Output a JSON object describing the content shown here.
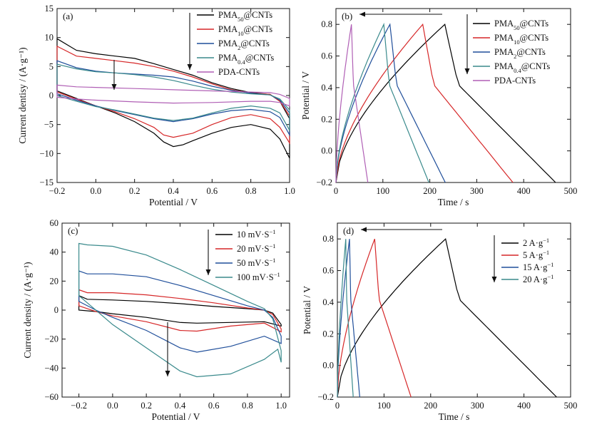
{
  "chart_data": [
    {
      "panel_label": "(a)",
      "type": "line",
      "xlabel": "Potential / V",
      "ylabel": "Current dentisy / (A·g⁻¹)",
      "xlim": [
        -0.2,
        1.0
      ],
      "ylim": [
        -15,
        15
      ],
      "xticks": [
        "−0.2",
        "0.0",
        "0.2",
        "0.4",
        "0.6",
        "0.8",
        "1.0"
      ],
      "yticks": [
        "−15",
        "−10",
        "−5",
        "0",
        "5",
        "10",
        "15"
      ],
      "legend_position": "top-right",
      "series": [
        {
          "name": "PMA",
          "sub": "50",
          "suffix": "@CNTs",
          "color": "#000000",
          "upper": [
            [
              -0.2,
              9.8
            ],
            [
              -0.1,
              7.8
            ],
            [
              0.0,
              7.2
            ],
            [
              0.1,
              6.8
            ],
            [
              0.2,
              6.4
            ],
            [
              0.3,
              5.5
            ],
            [
              0.4,
              4.5
            ],
            [
              0.5,
              3.5
            ],
            [
              0.6,
              2.2
            ],
            [
              0.7,
              1.2
            ],
            [
              0.8,
              0.5
            ],
            [
              0.9,
              0.2
            ],
            [
              0.95,
              -1.0
            ],
            [
              1.0,
              -4.0
            ]
          ],
          "lower": [
            [
              -0.2,
              0.8
            ],
            [
              -0.1,
              -0.5
            ],
            [
              0.0,
              -1.8
            ],
            [
              0.1,
              -3.0
            ],
            [
              0.2,
              -4.5
            ],
            [
              0.3,
              -6.5
            ],
            [
              0.35,
              -8.0
            ],
            [
              0.4,
              -8.8
            ],
            [
              0.45,
              -8.5
            ],
            [
              0.5,
              -7.8
            ],
            [
              0.6,
              -6.5
            ],
            [
              0.7,
              -5.5
            ],
            [
              0.8,
              -5.0
            ],
            [
              0.9,
              -5.8
            ],
            [
              0.95,
              -7.5
            ],
            [
              1.0,
              -10.8
            ]
          ]
        },
        {
          "name": "PMA",
          "sub": "10",
          "suffix": "@CNTs",
          "color": "#d62728",
          "upper": [
            [
              -0.2,
              8.5
            ],
            [
              -0.1,
              6.8
            ],
            [
              0.0,
              6.4
            ],
            [
              0.1,
              6.0
            ],
            [
              0.2,
              5.6
            ],
            [
              0.3,
              5.0
            ],
            [
              0.4,
              4.2
            ],
            [
              0.5,
              3.2
            ],
            [
              0.6,
              2.0
            ],
            [
              0.7,
              1.0
            ],
            [
              0.8,
              0.4
            ],
            [
              0.9,
              0.2
            ],
            [
              0.95,
              -1.0
            ],
            [
              1.0,
              -3.5
            ]
          ],
          "lower": [
            [
              -0.2,
              0.6
            ],
            [
              -0.1,
              -0.6
            ],
            [
              0.0,
              -1.8
            ],
            [
              0.1,
              -2.8
            ],
            [
              0.2,
              -4.0
            ],
            [
              0.3,
              -5.5
            ],
            [
              0.35,
              -6.8
            ],
            [
              0.4,
              -7.2
            ],
            [
              0.5,
              -6.5
            ],
            [
              0.6,
              -5.0
            ],
            [
              0.7,
              -3.8
            ],
            [
              0.8,
              -3.3
            ],
            [
              0.9,
              -4.0
            ],
            [
              0.95,
              -5.5
            ],
            [
              1.0,
              -8.2
            ]
          ]
        },
        {
          "name": "PMA",
          "sub": "2",
          "suffix": "@CNTs",
          "color": "#1f4e9a",
          "upper": [
            [
              -0.2,
              6.0
            ],
            [
              -0.1,
              4.8
            ],
            [
              0.0,
              4.2
            ],
            [
              0.1,
              3.9
            ],
            [
              0.2,
              3.7
            ],
            [
              0.3,
              3.5
            ],
            [
              0.4,
              3.2
            ],
            [
              0.5,
              2.5
            ],
            [
              0.6,
              1.6
            ],
            [
              0.7,
              0.9
            ],
            [
              0.8,
              0.4
            ],
            [
              0.9,
              0.1
            ],
            [
              0.95,
              -0.8
            ],
            [
              1.0,
              -3.0
            ]
          ],
          "lower": [
            [
              -0.2,
              0.3
            ],
            [
              -0.1,
              -0.8
            ],
            [
              0.0,
              -1.8
            ],
            [
              0.1,
              -2.6
            ],
            [
              0.2,
              -3.3
            ],
            [
              0.3,
              -4.0
            ],
            [
              0.4,
              -4.5
            ],
            [
              0.5,
              -4.0
            ],
            [
              0.6,
              -3.2
            ],
            [
              0.7,
              -2.6
            ],
            [
              0.8,
              -2.4
            ],
            [
              0.9,
              -2.8
            ],
            [
              0.95,
              -3.8
            ],
            [
              1.0,
              -6.8
            ]
          ]
        },
        {
          "name": "PMA",
          "sub": "0.4",
          "suffix": "@CNTs",
          "color": "#3a8a8c",
          "upper": [
            [
              -0.2,
              5.4
            ],
            [
              -0.1,
              4.6
            ],
            [
              0.0,
              4.1
            ],
            [
              0.1,
              3.9
            ],
            [
              0.2,
              3.6
            ],
            [
              0.3,
              3.2
            ],
            [
              0.4,
              2.6
            ],
            [
              0.5,
              1.8
            ],
            [
              0.6,
              1.1
            ],
            [
              0.7,
              0.6
            ],
            [
              0.8,
              0.3
            ],
            [
              0.9,
              0.1
            ],
            [
              0.95,
              -0.6
            ],
            [
              1.0,
              -2.5
            ]
          ],
          "lower": [
            [
              -0.2,
              0.0
            ],
            [
              -0.1,
              -1.0
            ],
            [
              0.0,
              -1.9
            ],
            [
              0.1,
              -2.5
            ],
            [
              0.2,
              -3.2
            ],
            [
              0.3,
              -3.9
            ],
            [
              0.4,
              -4.3
            ],
            [
              0.5,
              -3.9
            ],
            [
              0.6,
              -3.0
            ],
            [
              0.7,
              -2.2
            ],
            [
              0.8,
              -1.8
            ],
            [
              0.9,
              -2.2
            ],
            [
              0.95,
              -3.0
            ],
            [
              1.0,
              -6.0
            ]
          ]
        },
        {
          "name": "PDA-CNTs",
          "sub": "",
          "suffix": "",
          "color": "#b05fb5",
          "upper": [
            [
              -0.2,
              1.8
            ],
            [
              -0.1,
              1.5
            ],
            [
              0.0,
              1.4
            ],
            [
              0.2,
              1.2
            ],
            [
              0.4,
              1.0
            ],
            [
              0.6,
              0.8
            ],
            [
              0.8,
              0.6
            ],
            [
              0.9,
              0.5
            ],
            [
              0.95,
              0.2
            ],
            [
              1.0,
              -0.5
            ]
          ],
          "lower": [
            [
              -0.2,
              -0.3
            ],
            [
              -0.1,
              -0.6
            ],
            [
              0.0,
              -0.8
            ],
            [
              0.2,
              -1.1
            ],
            [
              0.4,
              -1.3
            ],
            [
              0.6,
              -1.2
            ],
            [
              0.8,
              -1.0
            ],
            [
              0.9,
              -1.0
            ],
            [
              0.95,
              -1.2
            ],
            [
              1.0,
              -1.8
            ]
          ]
        }
      ]
    },
    {
      "panel_label": "(b)",
      "type": "line",
      "xlabel": "Time / s",
      "ylabel": "Potential / V",
      "xlim": [
        0,
        500
      ],
      "ylim": [
        -0.2,
        0.9
      ],
      "xticks": [
        "0",
        "100",
        "200",
        "300",
        "400",
        "500"
      ],
      "yticks": [
        "−0.2",
        "0.0",
        "0.2",
        "0.4",
        "0.6",
        "0.8"
      ],
      "legend_position": "top-right",
      "series": [
        {
          "name": "PMA",
          "sub": "50",
          "suffix": "@CNTs",
          "color": "#000000",
          "peak_time": 232,
          "end_time": 468
        },
        {
          "name": "PMA",
          "sub": "10",
          "suffix": "@CNTs",
          "color": "#d62728",
          "peak_time": 185,
          "end_time": 377
        },
        {
          "name": "PMA",
          "sub": "2",
          "suffix": "@CNTs",
          "color": "#1f4e9a",
          "peak_time": 115,
          "end_time": 233
        },
        {
          "name": "PMA",
          "sub": "0.4",
          "suffix": "@CNTs",
          "color": "#3a8a8c",
          "peak_time": 102,
          "end_time": 198
        },
        {
          "name": "PDA-CNTs",
          "sub": "",
          "suffix": "",
          "color": "#b05fb5",
          "peak_time": 33,
          "end_time": 68
        }
      ]
    },
    {
      "panel_label": "(c)",
      "type": "line",
      "xlabel": "Potential / V",
      "ylabel": "Current density / (A·g⁻¹)",
      "xlim": [
        -0.3,
        1.05
      ],
      "ylim": [
        -60,
        60
      ],
      "xticks": [
        "−0.2",
        "0.0",
        "0.2",
        "0.4",
        "0.6",
        "0.8",
        "1.0"
      ],
      "xtick_values": [
        -0.2,
        0.0,
        0.2,
        0.4,
        0.6,
        0.8,
        1.0
      ],
      "yticks": [
        "−60",
        "−40",
        "−20",
        "0",
        "20",
        "40",
        "60"
      ],
      "legend_position": "top-right",
      "series": [
        {
          "name": "10 mV·S",
          "sup": "−1",
          "color": "#000000",
          "upper": [
            [
              -0.2,
              10
            ],
            [
              -0.15,
              7.5
            ],
            [
              0.0,
              7
            ],
            [
              0.2,
              6
            ],
            [
              0.4,
              4.5
            ],
            [
              0.6,
              2.5
            ],
            [
              0.8,
              1
            ],
            [
              0.9,
              0
            ],
            [
              0.95,
              -2
            ],
            [
              1.0,
              -10
            ]
          ],
          "lower": [
            [
              -0.2,
              0
            ],
            [
              -0.1,
              -1
            ],
            [
              0.0,
              -2.5
            ],
            [
              0.2,
              -5
            ],
            [
              0.4,
              -8.5
            ],
            [
              0.5,
              -9
            ],
            [
              0.7,
              -8.5
            ],
            [
              0.9,
              -8
            ],
            [
              1.0,
              -11
            ]
          ]
        },
        {
          "name": "20 mV·S",
          "sup": "−1",
          "color": "#d62728",
          "upper": [
            [
              -0.2,
              14
            ],
            [
              -0.15,
              12
            ],
            [
              0.0,
              12
            ],
            [
              0.2,
              10.5
            ],
            [
              0.4,
              8
            ],
            [
              0.6,
              5
            ],
            [
              0.8,
              1.5
            ],
            [
              0.9,
              0
            ],
            [
              0.95,
              -3
            ],
            [
              1.0,
              -13
            ]
          ],
          "lower": [
            [
              -0.2,
              3
            ],
            [
              -0.1,
              -1
            ],
            [
              0.0,
              -4
            ],
            [
              0.2,
              -8
            ],
            [
              0.4,
              -14
            ],
            [
              0.5,
              -14.5
            ],
            [
              0.7,
              -11
            ],
            [
              0.9,
              -9
            ],
            [
              1.0,
              -15
            ]
          ]
        },
        {
          "name": "50 mV·S",
          "sup": "−1",
          "color": "#1f4e9a",
          "upper": [
            [
              -0.2,
              27
            ],
            [
              -0.15,
              25
            ],
            [
              0.0,
              25
            ],
            [
              0.2,
              23
            ],
            [
              0.4,
              17
            ],
            [
              0.6,
              10
            ],
            [
              0.8,
              3
            ],
            [
              0.9,
              0
            ],
            [
              0.95,
              -5
            ],
            [
              1.0,
              -18
            ]
          ],
          "lower": [
            [
              -0.2,
              6
            ],
            [
              -0.1,
              0
            ],
            [
              0.0,
              -5
            ],
            [
              0.2,
              -14
            ],
            [
              0.4,
              -26
            ],
            [
              0.5,
              -29
            ],
            [
              0.7,
              -25
            ],
            [
              0.9,
              -18
            ],
            [
              1.0,
              -23
            ]
          ]
        },
        {
          "name": "100 mV·S",
          "sup": "−1",
          "color": "#3a8a8c",
          "upper": [
            [
              -0.2,
              46
            ],
            [
              -0.15,
              45
            ],
            [
              0.0,
              44
            ],
            [
              0.2,
              38
            ],
            [
              0.4,
              28
            ],
            [
              0.6,
              17
            ],
            [
              0.8,
              6
            ],
            [
              0.9,
              1
            ],
            [
              0.95,
              -6
            ],
            [
              1.0,
              -28
            ]
          ],
          "lower": [
            [
              -0.2,
              10
            ],
            [
              -0.1,
              0
            ],
            [
              0.0,
              -10
            ],
            [
              0.2,
              -26
            ],
            [
              0.4,
              -42
            ],
            [
              0.5,
              -46
            ],
            [
              0.7,
              -44
            ],
            [
              0.9,
              -34
            ],
            [
              0.98,
              -27
            ],
            [
              1.0,
              -36
            ]
          ]
        }
      ]
    },
    {
      "panel_label": "(d)",
      "type": "line",
      "xlabel": "Time / s",
      "ylabel": "Potential / V",
      "xlim": [
        0,
        500
      ],
      "ylim": [
        -0.2,
        0.9
      ],
      "xticks": [
        "0",
        "100",
        "200",
        "300",
        "400",
        "500"
      ],
      "yticks": [
        "−0.2",
        "0.0",
        "0.2",
        "0.4",
        "0.6",
        "0.8"
      ],
      "legend_position": "top-right",
      "series": [
        {
          "name": "2 A·g",
          "sup": "−1",
          "color": "#000000",
          "peak_time": 232,
          "end_time": 470
        },
        {
          "name": "5 A·g",
          "sup": "−1",
          "color": "#d62728",
          "peak_time": 80,
          "end_time": 158
        },
        {
          "name": "15 A·g",
          "sup": "−1",
          "color": "#1f4e9a",
          "peak_time": 26,
          "end_time": 48
        },
        {
          "name": "20 A·g",
          "sup": "−1",
          "color": "#3a8a8c",
          "peak_time": 18,
          "end_time": 34
        }
      ]
    }
  ]
}
